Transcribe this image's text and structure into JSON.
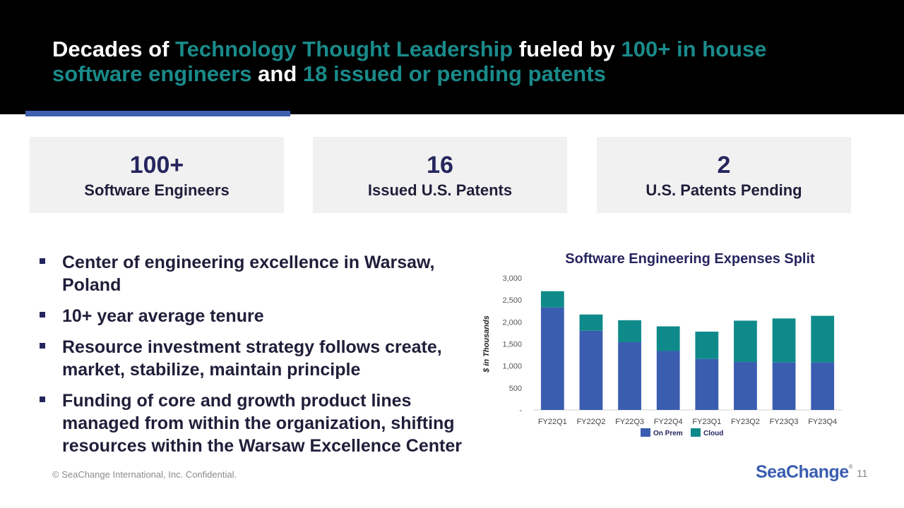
{
  "header": {
    "title_parts": [
      {
        "text": "Decades of ",
        "highlight": false
      },
      {
        "text": "Technology Thought Leadership",
        "highlight": true
      },
      {
        "text": " fueled by ",
        "highlight": false
      },
      {
        "text": "100+ in house software engineers",
        "highlight": true
      },
      {
        "text": " and ",
        "highlight": false
      },
      {
        "text": "18 issued or pending patents",
        "highlight": true
      }
    ]
  },
  "stats": [
    {
      "value": "100+",
      "label": "Software Engineers"
    },
    {
      "value": "16",
      "label": "Issued U.S. Patents"
    },
    {
      "value": "2",
      "label": "U.S. Patents Pending"
    }
  ],
  "bullets": [
    "Center of engineering excellence in Warsaw, Poland",
    "10+ year average tenure",
    "Resource investment strategy follows create, market, stabilize, maintain principle",
    "Funding of core and growth product lines managed from within the organization, shifting resources within the Warsaw Excellence Center"
  ],
  "chart_data": {
    "type": "bar",
    "stacked": true,
    "title": "Software Engineering Expenses Split",
    "xlabel": "",
    "ylabel": "$ in Thousands",
    "ylim": [
      0,
      3000
    ],
    "yticks": [
      0,
      500,
      1000,
      1500,
      2000,
      2500,
      3000
    ],
    "ytick_labels": [
      "-",
      "500",
      "1,000",
      "1,500",
      "2,000",
      "2,500",
      "3,000"
    ],
    "categories": [
      "FY22Q1",
      "FY22Q2",
      "FY22Q3",
      "FY22Q4",
      "FY23Q1",
      "FY23Q2",
      "FY23Q3",
      "FY23Q4"
    ],
    "series": [
      {
        "name": "On Prem",
        "color": "#3a5db0",
        "values": [
          2330,
          1800,
          1540,
          1340,
          1160,
          1090,
          1080,
          1080
        ]
      },
      {
        "name": "Cloud",
        "color": "#0f8a8a",
        "values": [
          370,
          370,
          500,
          560,
          620,
          940,
          1000,
          1060
        ]
      }
    ],
    "legend": "bottom-center",
    "grid": false
  },
  "footer": {
    "note": "© SeaChange International, Inc. Confidential.",
    "logo_text": "SeaChange",
    "logo_mark": "®",
    "page_number": "11"
  }
}
